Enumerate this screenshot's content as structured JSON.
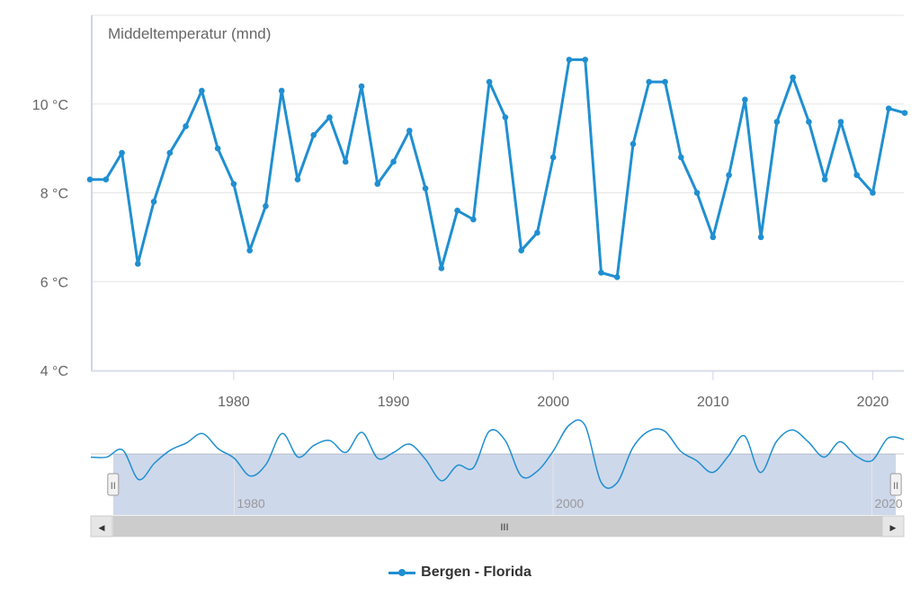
{
  "chart_data": {
    "type": "line",
    "title": "Middeltemperatur (mnd)",
    "x_tick_labels": [
      "1980",
      "1990",
      "2000",
      "2010",
      "2020"
    ],
    "y_tick_labels": [
      "4 °C",
      "6 °C",
      "8 °C",
      "10 °C"
    ],
    "y_ticks": [
      4,
      6,
      8,
      10
    ],
    "xlim": [
      1971,
      2022
    ],
    "ylim": [
      4,
      12
    ],
    "grid": true,
    "legend_position": "bottom-center",
    "navigator_tick_labels": [
      "1980",
      "2000",
      "2020"
    ],
    "navigator_range": [
      1972.4,
      2021.5
    ],
    "series": [
      {
        "name": "Bergen - Florida",
        "color": "#1f8fd1",
        "x": [
          1971,
          1972,
          1973,
          1974,
          1975,
          1976,
          1977,
          1978,
          1979,
          1980,
          1981,
          1982,
          1983,
          1984,
          1985,
          1986,
          1987,
          1988,
          1989,
          1990,
          1991,
          1992,
          1993,
          1994,
          1995,
          1996,
          1997,
          1998,
          1999,
          2000,
          2001,
          2002,
          2003,
          2004,
          2005,
          2006,
          2007,
          2008,
          2009,
          2010,
          2011,
          2012,
          2013,
          2014,
          2015,
          2016,
          2017,
          2018,
          2019,
          2020,
          2021,
          2022
        ],
        "values": [
          8.3,
          8.3,
          8.9,
          6.4,
          7.8,
          8.9,
          9.5,
          10.3,
          9.0,
          8.2,
          6.7,
          7.7,
          10.3,
          8.3,
          9.3,
          9.7,
          8.7,
          10.4,
          8.2,
          8.7,
          9.4,
          8.1,
          6.3,
          7.6,
          7.4,
          10.5,
          9.7,
          6.7,
          7.1,
          8.8,
          11.0,
          11.0,
          6.2,
          6.1,
          9.1,
          10.5,
          10.5,
          8.8,
          8.0,
          7.0,
          8.4,
          10.1,
          7.0,
          9.6,
          10.6,
          9.6,
          8.3,
          9.6,
          8.4,
          8.0,
          9.9,
          9.8
        ]
      }
    ]
  },
  "legend": {
    "label": "Bergen - Florida",
    "color": "#1f8fd1"
  },
  "scrollbar": {
    "grip_label": "III",
    "left_arrow": "◀",
    "right_arrow": "▶"
  },
  "navigator": {
    "handle_label": "II"
  }
}
